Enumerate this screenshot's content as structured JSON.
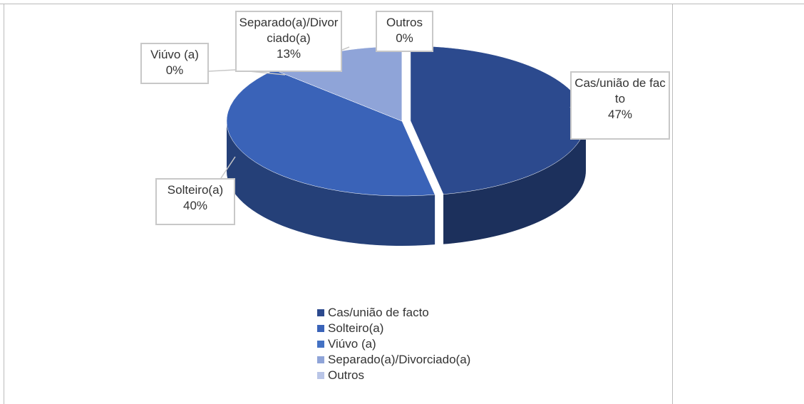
{
  "chart_data": {
    "type": "pie",
    "categories": [
      "Cas/união de facto",
      "Solteiro(a)",
      "Viúvo (a)",
      "Separado(a)/Divorciado(a)",
      "Outros"
    ],
    "values": [
      47,
      40,
      0,
      13,
      0
    ],
    "value_labels": [
      "47%",
      "40%",
      "0%",
      "13%",
      "0%"
    ],
    "colors": [
      "#2c4a8e",
      "#3a63b8",
      "#4472c4",
      "#8fa4d8",
      "#b9c5e7"
    ],
    "legend": "bottom"
  }
}
